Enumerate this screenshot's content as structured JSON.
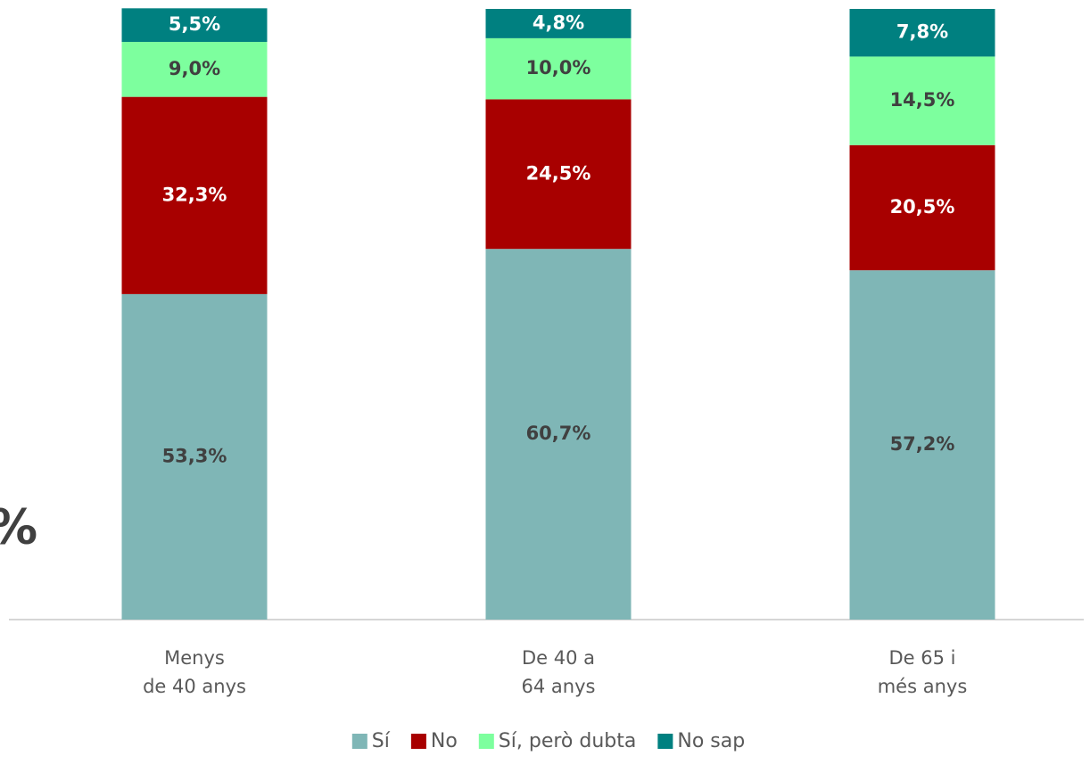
{
  "chart_data": {
    "type": "stacked_bar",
    "ylabel": "%",
    "categories": [
      "Menys\nde 40 anys",
      "De 40 a\n64 anys",
      "De 65 i\nmés anys"
    ],
    "ylim": [
      0,
      100
    ],
    "series": [
      {
        "name": "Sí",
        "color": "#7fb6b6",
        "label_color": "#404040",
        "values": [
          53.3,
          60.7,
          57.2
        ],
        "value_labels": [
          "53,3%",
          "60,7%",
          "57,2%"
        ]
      },
      {
        "name": "No",
        "color": "#a80000",
        "label_color": "#ffffff",
        "values": [
          32.3,
          24.5,
          20.5
        ],
        "value_labels": [
          "32,3%",
          "24,5%",
          "20,5%"
        ]
      },
      {
        "name": "Sí, però dubta",
        "color": "#7dff9e",
        "label_color": "#404040",
        "values": [
          9.0,
          10.0,
          14.5
        ],
        "value_labels": [
          "9,0%",
          "10,0%",
          "14,5%"
        ]
      },
      {
        "name": "No sap",
        "color": "#008080",
        "label_color": "#ffffff",
        "values": [
          5.5,
          4.8,
          7.8
        ],
        "value_labels": [
          "5,5%",
          "4,8%",
          "7,8%"
        ]
      }
    ]
  }
}
